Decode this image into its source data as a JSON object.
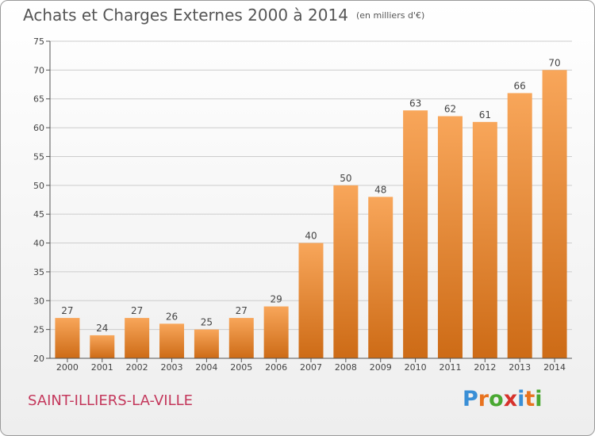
{
  "title": "Achats et Charges Externes 2000 à 2014",
  "unit_label": "(en milliers d'€)",
  "city": "SAINT-ILLIERS-LA-VILLE",
  "logo": {
    "text": "Proxiti",
    "letter_colors": [
      "#3a8fd6",
      "#e8731f",
      "#4aa832",
      "#d6322c",
      "#3a8fd6",
      "#e8731f",
      "#4aa832"
    ]
  },
  "colors": {
    "bar_top": "#f8a65a",
    "bar_bottom": "#cd6b16",
    "axis": "#555555",
    "grid": "#cccccc"
  },
  "chart_data": {
    "type": "bar",
    "categories": [
      "2000",
      "2001",
      "2002",
      "2003",
      "2004",
      "2005",
      "2006",
      "2007",
      "2008",
      "2009",
      "2010",
      "2011",
      "2012",
      "2013",
      "2014"
    ],
    "values": [
      27,
      24,
      27,
      26,
      25,
      27,
      29,
      40,
      50,
      48,
      63,
      62,
      61,
      66,
      70
    ],
    "yticks": [
      20,
      25,
      30,
      35,
      40,
      45,
      50,
      55,
      60,
      65,
      70,
      75
    ],
    "ylim": [
      20,
      75
    ],
    "title": "Achats et Charges Externes 2000 à 2014",
    "xlabel": "",
    "ylabel": "",
    "grid": true
  }
}
